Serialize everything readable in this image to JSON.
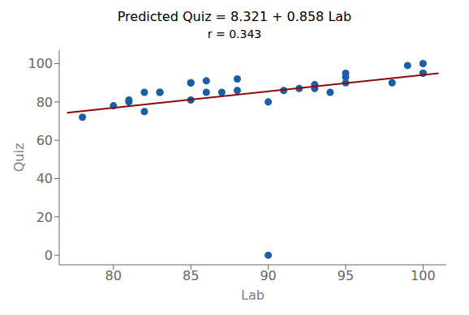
{
  "chart_data": {
    "type": "scatter",
    "title": "Predicted Quiz = 8.321 + 0.858 Lab",
    "subtitle": "r = 0.343",
    "xlabel": "Lab",
    "ylabel": "Quiz",
    "series": [
      {
        "type": "scatter",
        "color": "#1b5ea6",
        "x": [
          78,
          80,
          81,
          81,
          82,
          82,
          83,
          83,
          85,
          85,
          85,
          86,
          86,
          87,
          88,
          88,
          90,
          90,
          91,
          92,
          93,
          93,
          94,
          95,
          95,
          95,
          98,
          99,
          100,
          100,
          100
        ],
        "values": [
          72,
          78,
          80,
          81,
          75,
          85,
          85,
          85,
          81,
          90,
          90,
          85,
          91,
          85,
          86,
          92,
          80,
          0,
          86,
          87,
          87,
          89,
          85,
          90,
          93,
          95,
          90,
          99,
          95,
          95,
          100
        ]
      },
      {
        "type": "line",
        "color": "#8b0a0a",
        "x": [
          77,
          101
        ],
        "values": [
          74.387,
          94.979
        ]
      }
    ],
    "xlim": [
      76.5,
      101.5
    ],
    "ylim": [
      -5,
      107
    ],
    "xticks": [
      80,
      85,
      90,
      95,
      100
    ],
    "yticks": [
      0,
      20,
      40,
      60,
      80,
      100
    ],
    "grid": false
  }
}
